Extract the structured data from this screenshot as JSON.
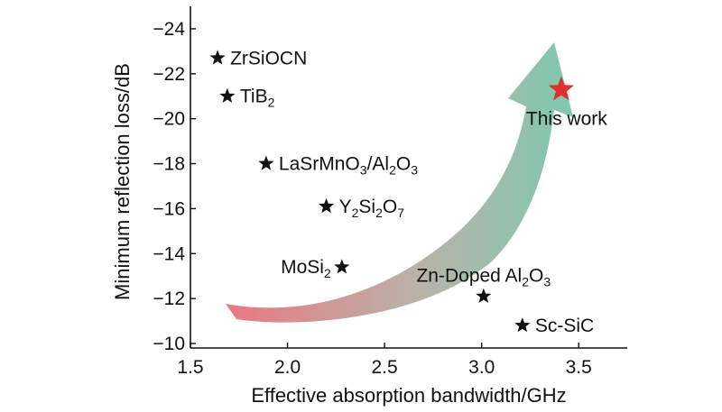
{
  "chart_data": {
    "type": "scatter",
    "xlabel": "Effective absorption bandwidth/GHz",
    "ylabel": "Minimum reflection loss/dB",
    "xlim": [
      1.5,
      3.75
    ],
    "ylim": [
      -9.8,
      -25
    ],
    "y_axis_inverted": true,
    "x_ticks": [
      1.5,
      2.0,
      2.5,
      3.0,
      3.5
    ],
    "x_tick_labels": [
      "1.5",
      "2.0",
      "2.5",
      "3.0",
      "3.5"
    ],
    "y_ticks": [
      -10,
      -12,
      -14,
      -16,
      -18,
      -20,
      -22,
      -24
    ],
    "y_tick_labels": [
      "−10",
      "−12",
      "−14",
      "−16",
      "−18",
      "−20",
      "−22",
      "−24"
    ],
    "grid": false,
    "legend": "none",
    "marker": "star",
    "points": [
      {
        "name": "ZrSiOCN",
        "label": [
          {
            "t": "ZrSiOCN"
          }
        ],
        "x": 1.64,
        "y": -22.7,
        "label_pos": "right",
        "color": "#111111",
        "highlight": false
      },
      {
        "name": "TiB2",
        "label": [
          {
            "t": "TiB"
          },
          {
            "t": "2",
            "s": 1
          }
        ],
        "x": 1.69,
        "y": -21.0,
        "label_pos": "right",
        "color": "#111111",
        "highlight": false
      },
      {
        "name": "LaSrMnO3/Al2O3",
        "label": [
          {
            "t": "LaSrMnO"
          },
          {
            "t": "3",
            "s": 1
          },
          {
            "t": "/Al"
          },
          {
            "t": "2",
            "s": 1
          },
          {
            "t": "O"
          },
          {
            "t": "3",
            "s": 1
          }
        ],
        "x": 1.89,
        "y": -18.0,
        "label_pos": "right",
        "color": "#111111",
        "highlight": false
      },
      {
        "name": "Y2Si2O7",
        "label": [
          {
            "t": "Y"
          },
          {
            "t": "2",
            "s": 1
          },
          {
            "t": "Si"
          },
          {
            "t": "2",
            "s": 1
          },
          {
            "t": "O"
          },
          {
            "t": "7",
            "s": 1
          }
        ],
        "x": 2.2,
        "y": -16.1,
        "label_pos": "right",
        "color": "#111111",
        "highlight": false
      },
      {
        "name": "MoSi2",
        "label": [
          {
            "t": "MoSi"
          },
          {
            "t": "2",
            "s": 1
          }
        ],
        "x": 2.28,
        "y": -13.4,
        "label_pos": "left",
        "color": "#111111",
        "highlight": false
      },
      {
        "name": "Zn-Doped Al2O3",
        "label": [
          {
            "t": "Zn-Doped Al"
          },
          {
            "t": "2",
            "s": 1
          },
          {
            "t": "O"
          },
          {
            "t": "3",
            "s": 1
          }
        ],
        "x": 3.01,
        "y": -12.1,
        "label_pos": "above",
        "color": "#111111",
        "highlight": false
      },
      {
        "name": "Sc-SiC",
        "label": [
          {
            "t": "Sc-SiC"
          }
        ],
        "x": 3.21,
        "y": -10.8,
        "label_pos": "right",
        "color": "#111111",
        "highlight": false
      },
      {
        "name": "This work",
        "label": [
          {
            "t": "This work"
          }
        ],
        "x": 3.41,
        "y": -21.3,
        "label_pos": "below",
        "color": "#e03030",
        "highlight": true
      }
    ],
    "trend_arrow": {
      "colors": [
        "#e87880",
        "#b9b3a8",
        "#7fc8b0"
      ]
    }
  }
}
